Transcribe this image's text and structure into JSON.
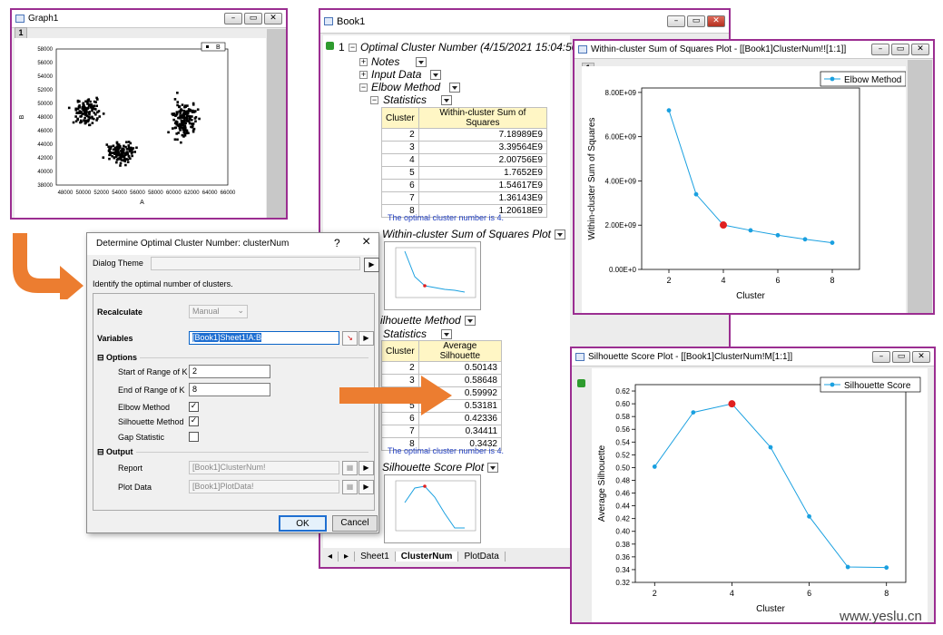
{
  "graph1": {
    "title": "Graph1",
    "page": "1",
    "legend": "B",
    "xlabel": "A",
    "ylabel": "B",
    "xticks": [
      "48000",
      "50000",
      "52000",
      "54000",
      "56000",
      "58000",
      "60000",
      "62000",
      "64000",
      "66000"
    ],
    "yticks": [
      "58000",
      "56000",
      "54000",
      "52000",
      "50000",
      "48000",
      "46000",
      "44000",
      "42000",
      "40000",
      "38000"
    ],
    "clusters": [
      {
        "cx": 50500,
        "cy": 48800,
        "sx": 1200,
        "sy": 1500,
        "n": 120
      },
      {
        "cx": 54300,
        "cy": 42800,
        "sx": 1300,
        "sy": 1100,
        "n": 130
      },
      {
        "cx": 61200,
        "cy": 47500,
        "sx": 1200,
        "sy": 2200,
        "n": 150
      }
    ]
  },
  "book1": {
    "title": "Book1",
    "root_index": "1",
    "root": "Optimal Cluster Number (4/15/2021 15:04:50)",
    "notes": "Notes",
    "input": "Input Data",
    "elbow": "Elbow Method",
    "statistics": "Statistics",
    "col_cluster": "Cluster",
    "col_wcss": "Within-cluster Sum of Squares",
    "wcss_rows": [
      [
        "2",
        "7.18989E9"
      ],
      [
        "3",
        "3.39564E9"
      ],
      [
        "4",
        "2.00756E9"
      ],
      [
        "5",
        "1.7652E9"
      ],
      [
        "6",
        "1.54617E9"
      ],
      [
        "7",
        "1.36143E9"
      ],
      [
        "8",
        "1.20618E9"
      ]
    ],
    "elbow_note": "The optimal cluster number is 4.",
    "wcss_plot": "Within-cluster Sum of Squares Plot",
    "sil": "ilhouette Method",
    "sil_stats": "Statistics",
    "col_avg": "Average Silhouette",
    "sil_rows": [
      [
        "2",
        "0.50143"
      ],
      [
        "3",
        "0.58648"
      ],
      [
        "4",
        "0.59992"
      ],
      [
        "5",
        "0.53181"
      ],
      [
        "6",
        "0.42336"
      ],
      [
        "7",
        "0.34411"
      ],
      [
        "8",
        "0.3432"
      ]
    ],
    "sil_note": "The optimal cluster number is 4.",
    "sil_plot": "Silhouette Score Plot",
    "tabs": [
      "Sheet1",
      "ClusterNum",
      "PlotData"
    ]
  },
  "dialog": {
    "title": "Determine Optimal Cluster Number: clusterNum",
    "help": "?",
    "close": "×",
    "theme_label": "Dialog Theme",
    "description": "Identify the optimal number of clusters.",
    "recalc_label": "Recalculate",
    "recalc_value": "Manual",
    "variables_label": "Variables",
    "variables_value": "[Book1]Sheet1!A:B",
    "options_label": "Options",
    "start_label": "Start of Range of K",
    "start_value": "2",
    "end_label": "End of Range of K",
    "end_value": "8",
    "elbow_label": "Elbow Method",
    "elbow_checked": true,
    "sil_label": "Silhouette Method",
    "sil_checked": true,
    "gap_label": "Gap Statistic",
    "gap_checked": false,
    "output_label": "Output",
    "report_label": "Report",
    "report_value": "[Book1]ClusterNum!",
    "plot_label": "Plot Data",
    "plot_value": "[Book1]PlotData!",
    "ok": "OK",
    "cancel": "Cancel"
  },
  "elbow_window": {
    "title": "Within-cluster Sum of Squares Plot - [[Book1]ClusterNum!![1:1]]",
    "page": "1"
  },
  "sil_window": {
    "title": "Silhouette Score Plot - [[Book1]ClusterNum!M[1:1]]",
    "page": "1"
  },
  "chart_data": [
    {
      "type": "line",
      "xlabel": "Cluster",
      "ylabel": "Within-cluster Sum of Squares",
      "legend": "Elbow Method",
      "x": [
        2,
        3,
        4,
        5,
        6,
        7,
        8
      ],
      "series": [
        {
          "name": "Elbow Method",
          "values": [
            7189890000.0,
            3395640000.0,
            2007560000.0,
            1765200000.0,
            1546170000.0,
            1361430000.0,
            1206180000.0
          ]
        }
      ],
      "highlight_x": 4,
      "xlim": [
        1,
        9
      ],
      "ylim": [
        0,
        8200000000.0
      ],
      "xticks": [
        2,
        4,
        6,
        8
      ],
      "yticks": [
        "0.00E+0",
        "2.00E+09",
        "4.00E+09",
        "6.00E+09",
        "8.00E+09"
      ],
      "legend_position": "top-right",
      "color": "#1aa0e0",
      "highlight_color": "#e02020"
    },
    {
      "type": "line",
      "xlabel": "Cluster",
      "ylabel": "Average Silhouette",
      "legend": "Silhouette Score",
      "x": [
        2,
        3,
        4,
        5,
        6,
        7,
        8
      ],
      "series": [
        {
          "name": "Silhouette Score",
          "values": [
            0.50143,
            0.58648,
            0.59992,
            0.53181,
            0.42336,
            0.34411,
            0.3432
          ]
        }
      ],
      "highlight_x": 4,
      "xlim": [
        1.5,
        8.5
      ],
      "ylim": [
        0.32,
        0.63
      ],
      "xticks": [
        2,
        4,
        6,
        8
      ],
      "yticks": [
        "0.32",
        "0.34",
        "0.36",
        "0.38",
        "0.40",
        "0.42",
        "0.44",
        "0.46",
        "0.48",
        "0.50",
        "0.52",
        "0.54",
        "0.56",
        "0.58",
        "0.60",
        "0.62"
      ],
      "legend_position": "top-right",
      "color": "#1aa0e0",
      "highlight_color": "#e02020"
    }
  ],
  "watermark": "www.yeslu.cn"
}
